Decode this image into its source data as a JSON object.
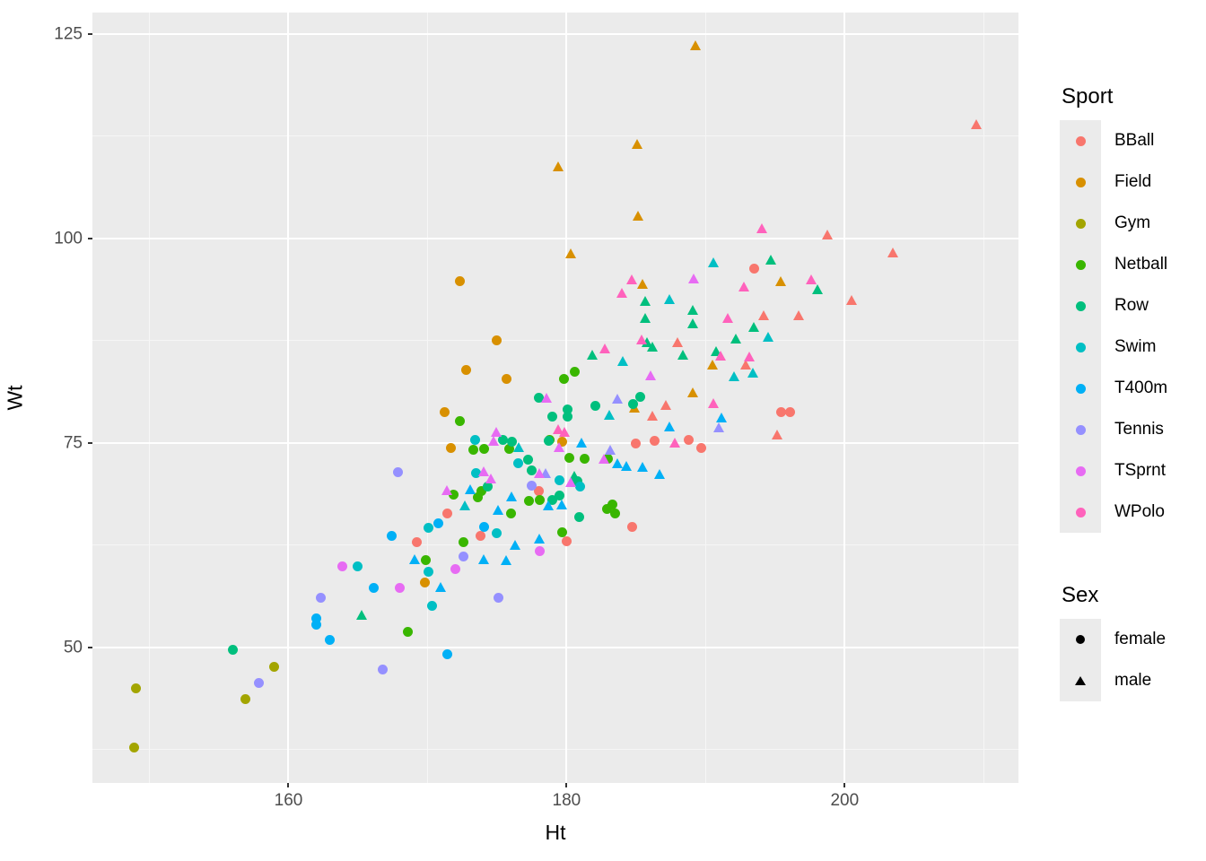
{
  "figure": {
    "panel_background": "#EBEBEB",
    "major_grid_color": "#FFFFFF",
    "minor_grid_color": "#F6F6F6",
    "tick_label_color": "#4D4D4D",
    "axis_title_color": "#000000"
  },
  "axes": {
    "xlabel": "Ht",
    "ylabel": "Wt",
    "x_domain": [
      145.9,
      212.5
    ],
    "y_domain": [
      33.4,
      127.6
    ],
    "x_ticks": [
      160,
      180,
      200
    ],
    "x_tick_labels": [
      "160",
      "180",
      "200"
    ],
    "y_ticks": [
      50,
      75,
      100,
      125
    ],
    "y_tick_labels": [
      "50",
      "75",
      "100",
      "125"
    ],
    "x_minor_ticks": [
      150,
      170,
      190,
      210
    ],
    "y_minor_ticks": [
      37.5,
      62.5,
      87.5,
      112.5
    ]
  },
  "legend": {
    "sport": {
      "title": "Sport",
      "items": [
        {
          "label": "BBall",
          "color": "#F8766D"
        },
        {
          "label": "Field",
          "color": "#D89000"
        },
        {
          "label": "Gym",
          "color": "#A3A500"
        },
        {
          "label": "Netball",
          "color": "#39B600"
        },
        {
          "label": "Row",
          "color": "#00BF7D"
        },
        {
          "label": "Swim",
          "color": "#00BFC4"
        },
        {
          "label": "T400m",
          "color": "#00B0F6"
        },
        {
          "label": "Tennis",
          "color": "#9590FF"
        },
        {
          "label": "TSprnt",
          "color": "#E76BF3"
        },
        {
          "label": "WPolo",
          "color": "#FF62BC"
        }
      ]
    },
    "sex": {
      "title": "Sex",
      "items": [
        {
          "label": "female",
          "shape": "circle"
        },
        {
          "label": "male",
          "shape": "triangle"
        }
      ]
    }
  },
  "chart_data": {
    "type": "scatter",
    "title": "",
    "xlabel": "Ht",
    "ylabel": "Wt",
    "xlim": [
      145.9,
      212.5
    ],
    "ylim": [
      33.4,
      127.6
    ],
    "grid": true,
    "legend_position": "right",
    "series": [
      {
        "sport": "BBall",
        "sex": "female",
        "color": "#F8766D",
        "shape": "circle",
        "points": [
          [
            169.2,
            62.8
          ],
          [
            173.8,
            63.6
          ],
          [
            171.4,
            66.3
          ],
          [
            178.0,
            69.1
          ],
          [
            180.0,
            63.0
          ],
          [
            184.7,
            64.7
          ],
          [
            185.0,
            74.9
          ],
          [
            186.3,
            75.2
          ],
          [
            188.8,
            75.4
          ],
          [
            189.7,
            74.4
          ],
          [
            195.4,
            78.8
          ],
          [
            196.1,
            78.8
          ],
          [
            193.5,
            96.3
          ]
        ]
      },
      {
        "sport": "BBall",
        "sex": "male",
        "color": "#F8766D",
        "shape": "triangle",
        "points": [
          [
            209.5,
            113.8
          ],
          [
            203.5,
            98.2
          ],
          [
            198.8,
            100.3
          ],
          [
            200.5,
            92.3
          ],
          [
            196.7,
            90.5
          ],
          [
            194.2,
            90.5
          ],
          [
            192.9,
            84.4
          ],
          [
            188.0,
            87.2
          ],
          [
            187.2,
            79.5
          ],
          [
            186.2,
            78.2
          ],
          [
            195.2,
            75.9
          ]
        ]
      },
      {
        "sport": "Field",
        "sex": "female",
        "color": "#D89000",
        "shape": "circle",
        "points": [
          [
            172.3,
            94.8
          ],
          [
            175.0,
            87.5
          ],
          [
            172.8,
            83.9
          ],
          [
            175.7,
            82.8
          ],
          [
            171.2,
            78.8
          ],
          [
            171.7,
            74.4
          ],
          [
            179.7,
            75.1
          ],
          [
            169.8,
            57.9
          ]
        ]
      },
      {
        "sport": "Field",
        "sex": "male",
        "color": "#D89000",
        "shape": "triangle",
        "points": [
          [
            189.3,
            123.5
          ],
          [
            185.1,
            111.4
          ],
          [
            179.4,
            108.7
          ],
          [
            185.2,
            102.7
          ],
          [
            180.3,
            98.0
          ],
          [
            185.5,
            94.3
          ],
          [
            195.4,
            94.7
          ],
          [
            190.5,
            84.4
          ],
          [
            189.1,
            81.0
          ],
          [
            184.9,
            79.2
          ]
        ]
      },
      {
        "sport": "Gym",
        "sex": "female",
        "color": "#A3A500",
        "shape": "circle",
        "points": [
          [
            149.0,
            45.0
          ],
          [
            148.9,
            37.7
          ],
          [
            156.9,
            43.6
          ],
          [
            159.0,
            47.6
          ]
        ]
      },
      {
        "sport": "Netball",
        "sex": "female",
        "color": "#39B600",
        "shape": "circle",
        "points": [
          [
            172.6,
            62.8
          ],
          [
            169.9,
            60.6
          ],
          [
            168.6,
            51.9
          ],
          [
            172.3,
            77.7
          ],
          [
            178.8,
            75.4
          ],
          [
            173.3,
            74.1
          ],
          [
            174.1,
            74.2
          ],
          [
            175.9,
            74.2
          ],
          [
            171.9,
            68.7
          ],
          [
            173.9,
            69.1
          ],
          [
            173.6,
            68.3
          ],
          [
            177.3,
            67.9
          ],
          [
            178.1,
            68.0
          ],
          [
            176.0,
            66.3
          ],
          [
            179.7,
            64.0
          ],
          [
            179.8,
            82.8
          ],
          [
            180.6,
            83.7
          ],
          [
            180.2,
            73.2
          ],
          [
            181.3,
            73.0
          ],
          [
            183.0,
            73.0
          ],
          [
            182.9,
            66.9
          ],
          [
            183.3,
            67.4
          ],
          [
            183.5,
            66.4
          ]
        ]
      },
      {
        "sport": "Row",
        "sex": "female",
        "color": "#00BF7D",
        "shape": "circle",
        "points": [
          [
            156.0,
            49.7
          ],
          [
            180.1,
            79.1
          ],
          [
            180.1,
            78.2
          ],
          [
            178.7,
            75.2
          ],
          [
            175.4,
            75.3
          ],
          [
            176.1,
            75.1
          ],
          [
            179.0,
            78.2
          ],
          [
            177.5,
            71.6
          ],
          [
            177.2,
            72.9
          ],
          [
            174.3,
            69.6
          ],
          [
            179.0,
            68.0
          ],
          [
            179.5,
            68.5
          ],
          [
            180.8,
            70.3
          ],
          [
            180.9,
            65.9
          ],
          [
            182.1,
            79.5
          ],
          [
            184.8,
            79.7
          ],
          [
            185.3,
            80.6
          ],
          [
            178.0,
            80.5
          ]
        ]
      },
      {
        "sport": "Row",
        "sex": "male",
        "color": "#00BF7D",
        "shape": "triangle",
        "points": [
          [
            165.3,
            53.9
          ],
          [
            185.7,
            92.2
          ],
          [
            185.7,
            90.1
          ],
          [
            189.1,
            91.1
          ],
          [
            189.1,
            89.5
          ],
          [
            192.2,
            87.6
          ],
          [
            193.5,
            89.0
          ],
          [
            185.8,
            87.2
          ],
          [
            186.2,
            86.6
          ],
          [
            188.4,
            85.6
          ],
          [
            181.9,
            85.6
          ],
          [
            190.8,
            86.1
          ],
          [
            194.7,
            97.3
          ],
          [
            198.1,
            93.7
          ],
          [
            180.6,
            70.9
          ]
        ]
      },
      {
        "sport": "Swim",
        "sex": "female",
        "color": "#00BFC4",
        "shape": "circle",
        "points": [
          [
            170.1,
            64.6
          ],
          [
            175.0,
            63.9
          ],
          [
            165.0,
            59.9
          ],
          [
            170.1,
            59.2
          ],
          [
            170.3,
            55.1
          ],
          [
            173.4,
            75.4
          ],
          [
            173.5,
            71.3
          ],
          [
            179.5,
            70.4
          ],
          [
            181.0,
            69.6
          ],
          [
            176.5,
            72.5
          ]
        ]
      },
      {
        "sport": "Swim",
        "sex": "male",
        "color": "#00BFC4",
        "shape": "triangle",
        "points": [
          [
            176.6,
            74.4
          ],
          [
            172.7,
            67.2
          ],
          [
            183.1,
            78.3
          ],
          [
            184.1,
            84.9
          ],
          [
            187.4,
            92.4
          ],
          [
            190.6,
            97.0
          ],
          [
            192.1,
            83.0
          ],
          [
            193.4,
            83.5
          ],
          [
            194.5,
            87.9
          ]
        ]
      },
      {
        "sport": "T400m",
        "sex": "female",
        "color": "#00B0F6",
        "shape": "circle",
        "points": [
          [
            162.0,
            53.5
          ],
          [
            162.0,
            52.8
          ],
          [
            163.0,
            50.9
          ],
          [
            166.1,
            57.2
          ],
          [
            167.4,
            63.6
          ],
          [
            170.8,
            65.2
          ],
          [
            171.4,
            49.1
          ],
          [
            174.1,
            64.7
          ]
        ]
      },
      {
        "sport": "T400m",
        "sex": "male",
        "color": "#00B0F6",
        "shape": "triangle",
        "points": [
          [
            176.3,
            62.4
          ],
          [
            178.1,
            63.2
          ],
          [
            174.1,
            60.7
          ],
          [
            175.7,
            60.5
          ],
          [
            169.1,
            60.6
          ],
          [
            171.0,
            57.3
          ],
          [
            173.1,
            69.2
          ],
          [
            176.1,
            68.3
          ],
          [
            175.1,
            66.7
          ],
          [
            178.7,
            67.2
          ],
          [
            179.7,
            67.3
          ],
          [
            181.1,
            74.9
          ],
          [
            183.7,
            72.4
          ],
          [
            184.3,
            72.1
          ],
          [
            185.5,
            72.0
          ],
          [
            186.7,
            71.1
          ],
          [
            187.4,
            76.9
          ],
          [
            191.2,
            78.0
          ]
        ]
      },
      {
        "sport": "Tennis",
        "sex": "female",
        "color": "#9590FF",
        "shape": "circle",
        "points": [
          [
            157.9,
            45.6
          ],
          [
            166.8,
            47.3
          ],
          [
            162.3,
            56.0
          ],
          [
            175.1,
            56.0
          ],
          [
            172.6,
            61.1
          ],
          [
            167.9,
            71.4
          ],
          [
            177.5,
            69.7
          ]
        ]
      },
      {
        "sport": "Tennis",
        "sex": "male",
        "color": "#9590FF",
        "shape": "triangle",
        "points": [
          [
            183.7,
            80.3
          ],
          [
            191.0,
            76.8
          ],
          [
            183.2,
            74.0
          ],
          [
            178.5,
            71.2
          ]
        ]
      },
      {
        "sport": "TSprnt",
        "sex": "female",
        "color": "#E76BF3",
        "shape": "circle",
        "points": [
          [
            163.9,
            59.9
          ],
          [
            168.0,
            57.2
          ],
          [
            172.0,
            59.6
          ],
          [
            178.1,
            61.8
          ]
        ]
      },
      {
        "sport": "TSprnt",
        "sex": "male",
        "color": "#E76BF3",
        "shape": "triangle",
        "points": [
          [
            189.2,
            95.0
          ],
          [
            186.1,
            83.1
          ],
          [
            178.6,
            80.4
          ],
          [
            175.0,
            76.2
          ],
          [
            174.8,
            75.1
          ],
          [
            174.1,
            71.4
          ],
          [
            174.6,
            70.5
          ],
          [
            171.4,
            69.1
          ],
          [
            178.1,
            71.2
          ],
          [
            182.7,
            72.9
          ],
          [
            180.3,
            70.1
          ],
          [
            179.5,
            74.4
          ]
        ]
      },
      {
        "sport": "WPolo",
        "sex": "male",
        "color": "#FF62BC",
        "shape": "triangle",
        "points": [
          [
            184.7,
            94.9
          ],
          [
            184.0,
            93.2
          ],
          [
            192.8,
            94.0
          ],
          [
            194.1,
            101.1
          ],
          [
            185.4,
            87.5
          ],
          [
            182.8,
            86.4
          ],
          [
            191.1,
            85.5
          ],
          [
            193.2,
            85.4
          ],
          [
            190.6,
            79.7
          ],
          [
            191.6,
            90.1
          ],
          [
            187.8,
            74.9
          ],
          [
            179.4,
            76.5
          ],
          [
            179.9,
            76.2
          ],
          [
            197.6,
            94.9
          ]
        ]
      }
    ]
  }
}
